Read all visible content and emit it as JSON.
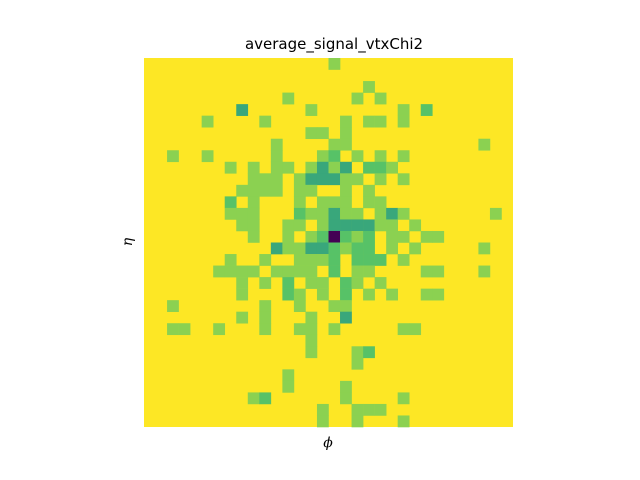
{
  "chart_data": {
    "type": "heatmap",
    "title": "average_signal_vtxChi2",
    "xlabel": "ϕ",
    "ylabel": "η",
    "grid": false,
    "colorbar": false,
    "colormap": "viridis",
    "nx": 32,
    "ny": 32,
    "value_range": [
      0,
      1
    ],
    "background_value": 1.0,
    "cells": [
      {
        "x": 16,
        "y": 0,
        "v": 0.82
      },
      {
        "x": 19,
        "y": 2,
        "v": 0.82
      },
      {
        "x": 12,
        "y": 3,
        "v": 0.82
      },
      {
        "x": 18,
        "y": 3,
        "v": 0.82
      },
      {
        "x": 20,
        "y": 3,
        "v": 0.82
      },
      {
        "x": 8,
        "y": 4,
        "v": 0.6
      },
      {
        "x": 14,
        "y": 4,
        "v": 0.82
      },
      {
        "x": 22,
        "y": 4,
        "v": 0.82
      },
      {
        "x": 24,
        "y": 4,
        "v": 0.72
      },
      {
        "x": 5,
        "y": 5,
        "v": 0.82
      },
      {
        "x": 10,
        "y": 5,
        "v": 0.82
      },
      {
        "x": 17,
        "y": 5,
        "v": 0.82
      },
      {
        "x": 19,
        "y": 5,
        "v": 0.82
      },
      {
        "x": 20,
        "y": 5,
        "v": 0.82
      },
      {
        "x": 22,
        "y": 5,
        "v": 0.82
      },
      {
        "x": 14,
        "y": 6,
        "v": 0.82
      },
      {
        "x": 15,
        "y": 6,
        "v": 0.82
      },
      {
        "x": 17,
        "y": 6,
        "v": 0.82
      },
      {
        "x": 11,
        "y": 7,
        "v": 0.82
      },
      {
        "x": 16,
        "y": 7,
        "v": 0.82
      },
      {
        "x": 17,
        "y": 7,
        "v": 0.82
      },
      {
        "x": 29,
        "y": 7,
        "v": 0.82
      },
      {
        "x": 2,
        "y": 8,
        "v": 0.82
      },
      {
        "x": 5,
        "y": 8,
        "v": 0.82
      },
      {
        "x": 11,
        "y": 8,
        "v": 0.82
      },
      {
        "x": 15,
        "y": 8,
        "v": 0.82
      },
      {
        "x": 16,
        "y": 8,
        "v": 0.72
      },
      {
        "x": 18,
        "y": 8,
        "v": 0.82
      },
      {
        "x": 20,
        "y": 8,
        "v": 0.82
      },
      {
        "x": 22,
        "y": 8,
        "v": 0.82
      },
      {
        "x": 7,
        "y": 9,
        "v": 0.82
      },
      {
        "x": 9,
        "y": 9,
        "v": 0.82
      },
      {
        "x": 11,
        "y": 9,
        "v": 0.82
      },
      {
        "x": 12,
        "y": 9,
        "v": 0.82
      },
      {
        "x": 14,
        "y": 9,
        "v": 0.82
      },
      {
        "x": 15,
        "y": 9,
        "v": 0.6
      },
      {
        "x": 16,
        "y": 9,
        "v": 0.82
      },
      {
        "x": 17,
        "y": 9,
        "v": 0.6
      },
      {
        "x": 19,
        "y": 9,
        "v": 0.72
      },
      {
        "x": 20,
        "y": 9,
        "v": 0.72
      },
      {
        "x": 21,
        "y": 9,
        "v": 0.82
      },
      {
        "x": 9,
        "y": 10,
        "v": 0.82
      },
      {
        "x": 10,
        "y": 10,
        "v": 0.82
      },
      {
        "x": 11,
        "y": 10,
        "v": 0.82
      },
      {
        "x": 13,
        "y": 10,
        "v": 0.82
      },
      {
        "x": 14,
        "y": 10,
        "v": 0.6
      },
      {
        "x": 15,
        "y": 10,
        "v": 0.6
      },
      {
        "x": 16,
        "y": 10,
        "v": 0.6
      },
      {
        "x": 17,
        "y": 10,
        "v": 0.82
      },
      {
        "x": 18,
        "y": 10,
        "v": 0.82
      },
      {
        "x": 20,
        "y": 10,
        "v": 0.82
      },
      {
        "x": 22,
        "y": 10,
        "v": 0.82
      },
      {
        "x": 8,
        "y": 11,
        "v": 0.82
      },
      {
        "x": 9,
        "y": 11,
        "v": 0.82
      },
      {
        "x": 10,
        "y": 11,
        "v": 0.82
      },
      {
        "x": 11,
        "y": 11,
        "v": 0.82
      },
      {
        "x": 13,
        "y": 11,
        "v": 0.82
      },
      {
        "x": 14,
        "y": 11,
        "v": 0.82
      },
      {
        "x": 17,
        "y": 11,
        "v": 0.82
      },
      {
        "x": 19,
        "y": 11,
        "v": 0.82
      },
      {
        "x": 7,
        "y": 12,
        "v": 0.72
      },
      {
        "x": 9,
        "y": 12,
        "v": 0.82
      },
      {
        "x": 13,
        "y": 12,
        "v": 0.82
      },
      {
        "x": 15,
        "y": 12,
        "v": 0.82
      },
      {
        "x": 16,
        "y": 12,
        "v": 0.82
      },
      {
        "x": 17,
        "y": 12,
        "v": 0.82
      },
      {
        "x": 19,
        "y": 12,
        "v": 0.82
      },
      {
        "x": 20,
        "y": 12,
        "v": 0.82
      },
      {
        "x": 7,
        "y": 13,
        "v": 0.82
      },
      {
        "x": 8,
        "y": 13,
        "v": 0.82
      },
      {
        "x": 9,
        "y": 13,
        "v": 0.82
      },
      {
        "x": 13,
        "y": 13,
        "v": 0.72
      },
      {
        "x": 14,
        "y": 13,
        "v": 0.82
      },
      {
        "x": 15,
        "y": 13,
        "v": 0.82
      },
      {
        "x": 16,
        "y": 13,
        "v": 0.6
      },
      {
        "x": 17,
        "y": 13,
        "v": 0.82
      },
      {
        "x": 18,
        "y": 13,
        "v": 0.82
      },
      {
        "x": 20,
        "y": 13,
        "v": 0.82
      },
      {
        "x": 21,
        "y": 13,
        "v": 0.6
      },
      {
        "x": 22,
        "y": 13,
        "v": 0.82
      },
      {
        "x": 30,
        "y": 13,
        "v": 0.82
      },
      {
        "x": 8,
        "y": 14,
        "v": 0.82
      },
      {
        "x": 9,
        "y": 14,
        "v": 0.82
      },
      {
        "x": 12,
        "y": 14,
        "v": 0.82
      },
      {
        "x": 13,
        "y": 14,
        "v": 0.82
      },
      {
        "x": 15,
        "y": 14,
        "v": 0.82
      },
      {
        "x": 16,
        "y": 14,
        "v": 0.6
      },
      {
        "x": 17,
        "y": 14,
        "v": 0.6
      },
      {
        "x": 18,
        "y": 14,
        "v": 0.6
      },
      {
        "x": 19,
        "y": 14,
        "v": 0.6
      },
      {
        "x": 20,
        "y": 14,
        "v": 0.82
      },
      {
        "x": 21,
        "y": 14,
        "v": 0.82
      },
      {
        "x": 23,
        "y": 14,
        "v": 0.82
      },
      {
        "x": 9,
        "y": 15,
        "v": 0.82
      },
      {
        "x": 12,
        "y": 15,
        "v": 0.82
      },
      {
        "x": 14,
        "y": 15,
        "v": 0.82
      },
      {
        "x": 15,
        "y": 15,
        "v": 0.72
      },
      {
        "x": 16,
        "y": 15,
        "v": 0.0
      },
      {
        "x": 17,
        "y": 15,
        "v": 0.72
      },
      {
        "x": 18,
        "y": 15,
        "v": 0.82
      },
      {
        "x": 19,
        "y": 15,
        "v": 0.72
      },
      {
        "x": 21,
        "y": 15,
        "v": 0.82
      },
      {
        "x": 22,
        "y": 15,
        "v": 0.82
      },
      {
        "x": 24,
        "y": 15,
        "v": 0.82
      },
      {
        "x": 25,
        "y": 15,
        "v": 0.82
      },
      {
        "x": 11,
        "y": 16,
        "v": 0.6
      },
      {
        "x": 12,
        "y": 16,
        "v": 0.82
      },
      {
        "x": 13,
        "y": 16,
        "v": 0.82
      },
      {
        "x": 14,
        "y": 16,
        "v": 0.6
      },
      {
        "x": 15,
        "y": 16,
        "v": 0.6
      },
      {
        "x": 16,
        "y": 16,
        "v": 0.72
      },
      {
        "x": 17,
        "y": 16,
        "v": 0.82
      },
      {
        "x": 18,
        "y": 16,
        "v": 0.72
      },
      {
        "x": 19,
        "y": 16,
        "v": 0.72
      },
      {
        "x": 21,
        "y": 16,
        "v": 0.82
      },
      {
        "x": 23,
        "y": 16,
        "v": 0.82
      },
      {
        "x": 29,
        "y": 16,
        "v": 0.82
      },
      {
        "x": 7,
        "y": 17,
        "v": 0.82
      },
      {
        "x": 10,
        "y": 17,
        "v": 0.82
      },
      {
        "x": 13,
        "y": 17,
        "v": 0.82
      },
      {
        "x": 14,
        "y": 17,
        "v": 0.82
      },
      {
        "x": 15,
        "y": 17,
        "v": 0.82
      },
      {
        "x": 16,
        "y": 17,
        "v": 0.72
      },
      {
        "x": 18,
        "y": 17,
        "v": 0.72
      },
      {
        "x": 19,
        "y": 17,
        "v": 0.72
      },
      {
        "x": 20,
        "y": 17,
        "v": 0.72
      },
      {
        "x": 22,
        "y": 17,
        "v": 0.82
      },
      {
        "x": 6,
        "y": 18,
        "v": 0.82
      },
      {
        "x": 7,
        "y": 18,
        "v": 0.82
      },
      {
        "x": 8,
        "y": 18,
        "v": 0.82
      },
      {
        "x": 9,
        "y": 18,
        "v": 0.82
      },
      {
        "x": 11,
        "y": 18,
        "v": 0.82
      },
      {
        "x": 12,
        "y": 18,
        "v": 0.82
      },
      {
        "x": 13,
        "y": 18,
        "v": 0.82
      },
      {
        "x": 14,
        "y": 18,
        "v": 0.82
      },
      {
        "x": 16,
        "y": 18,
        "v": 0.72
      },
      {
        "x": 18,
        "y": 18,
        "v": 0.82
      },
      {
        "x": 19,
        "y": 18,
        "v": 0.82
      },
      {
        "x": 24,
        "y": 18,
        "v": 0.82
      },
      {
        "x": 25,
        "y": 18,
        "v": 0.82
      },
      {
        "x": 29,
        "y": 18,
        "v": 0.82
      },
      {
        "x": 8,
        "y": 19,
        "v": 0.82
      },
      {
        "x": 10,
        "y": 19,
        "v": 0.82
      },
      {
        "x": 12,
        "y": 19,
        "v": 0.72
      },
      {
        "x": 14,
        "y": 19,
        "v": 0.82
      },
      {
        "x": 15,
        "y": 19,
        "v": 0.82
      },
      {
        "x": 17,
        "y": 19,
        "v": 0.72
      },
      {
        "x": 18,
        "y": 19,
        "v": 0.82
      },
      {
        "x": 20,
        "y": 19,
        "v": 0.82
      },
      {
        "x": 8,
        "y": 20,
        "v": 0.82
      },
      {
        "x": 12,
        "y": 20,
        "v": 0.72
      },
      {
        "x": 13,
        "y": 20,
        "v": 0.82
      },
      {
        "x": 15,
        "y": 20,
        "v": 0.82
      },
      {
        "x": 17,
        "y": 20,
        "v": 0.72
      },
      {
        "x": 19,
        "y": 20,
        "v": 0.82
      },
      {
        "x": 21,
        "y": 20,
        "v": 0.82
      },
      {
        "x": 24,
        "y": 20,
        "v": 0.82
      },
      {
        "x": 25,
        "y": 20,
        "v": 0.82
      },
      {
        "x": 2,
        "y": 21,
        "v": 0.82
      },
      {
        "x": 10,
        "y": 21,
        "v": 0.82
      },
      {
        "x": 13,
        "y": 21,
        "v": 0.82
      },
      {
        "x": 16,
        "y": 21,
        "v": 0.82
      },
      {
        "x": 17,
        "y": 21,
        "v": 0.82
      },
      {
        "x": 8,
        "y": 22,
        "v": 0.82
      },
      {
        "x": 10,
        "y": 22,
        "v": 0.82
      },
      {
        "x": 14,
        "y": 22,
        "v": 0.82
      },
      {
        "x": 17,
        "y": 22,
        "v": 0.6
      },
      {
        "x": 2,
        "y": 23,
        "v": 0.82
      },
      {
        "x": 3,
        "y": 23,
        "v": 0.82
      },
      {
        "x": 6,
        "y": 23,
        "v": 0.82
      },
      {
        "x": 10,
        "y": 23,
        "v": 0.82
      },
      {
        "x": 13,
        "y": 23,
        "v": 0.82
      },
      {
        "x": 14,
        "y": 23,
        "v": 0.82
      },
      {
        "x": 16,
        "y": 23,
        "v": 0.82
      },
      {
        "x": 22,
        "y": 23,
        "v": 0.82
      },
      {
        "x": 23,
        "y": 23,
        "v": 0.82
      },
      {
        "x": 14,
        "y": 24,
        "v": 0.82
      },
      {
        "x": 14,
        "y": 25,
        "v": 0.82
      },
      {
        "x": 18,
        "y": 25,
        "v": 0.82
      },
      {
        "x": 19,
        "y": 25,
        "v": 0.72
      },
      {
        "x": 18,
        "y": 26,
        "v": 0.82
      },
      {
        "x": 12,
        "y": 27,
        "v": 0.82
      },
      {
        "x": 12,
        "y": 28,
        "v": 0.82
      },
      {
        "x": 17,
        "y": 28,
        "v": 0.82
      },
      {
        "x": 9,
        "y": 29,
        "v": 0.82
      },
      {
        "x": 10,
        "y": 29,
        "v": 0.72
      },
      {
        "x": 17,
        "y": 29,
        "v": 0.82
      },
      {
        "x": 22,
        "y": 29,
        "v": 0.82
      },
      {
        "x": 15,
        "y": 30,
        "v": 0.82
      },
      {
        "x": 18,
        "y": 30,
        "v": 0.82
      },
      {
        "x": 19,
        "y": 30,
        "v": 0.82
      },
      {
        "x": 20,
        "y": 30,
        "v": 0.82
      },
      {
        "x": 15,
        "y": 31,
        "v": 0.82
      },
      {
        "x": 18,
        "y": 31,
        "v": 0.82
      },
      {
        "x": 22,
        "y": 31,
        "v": 0.82
      }
    ]
  }
}
